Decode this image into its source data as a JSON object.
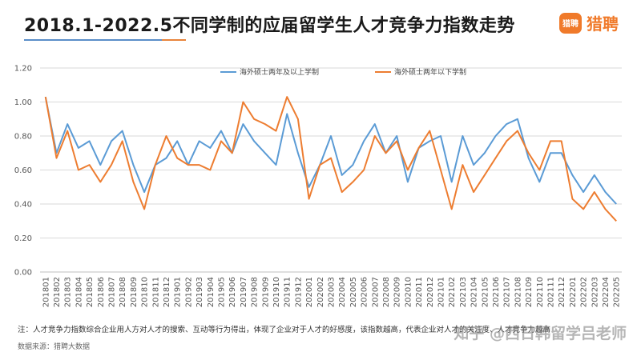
{
  "header": {
    "title": "2018.1-2022.5不同学制的应届留学生人才竞争力指数走势",
    "brand_badge": "猎聘",
    "brand_name": "猎聘"
  },
  "footnote": "注：人才竞争力指数综合企业用人方对人才的搜索、互动等行为得出，体现了企业对于人才的好感度，该指数越高，代表企业对人才的关注度、人才竞争力越高",
  "source": "数据来源：猎聘大数据",
  "watermark": "知乎 @西日韩留学吕老师",
  "colors": {
    "series1": "#5b9bd5",
    "series2": "#ed7d31",
    "title_accent_blue": "#5a8ec8",
    "brand": "#f07a2a"
  },
  "chart_data": {
    "type": "line",
    "title": "2018.1-2022.5不同学制的应届留学生人才竞争力指数走势",
    "xlabel": "",
    "ylabel": "",
    "ylim": [
      0,
      1.2
    ],
    "yticks": [
      "0.00",
      "0.20",
      "0.40",
      "0.60",
      "0.80",
      "1.00",
      "1.20"
    ],
    "grid": true,
    "legend_position": "top-center",
    "categories": [
      "201801",
      "201802",
      "201803",
      "201804",
      "201805",
      "201806",
      "201807",
      "201808",
      "201809",
      "201810",
      "201811",
      "201812",
      "201901",
      "201902",
      "201903",
      "201904",
      "201905",
      "201906",
      "201907",
      "201908",
      "201909",
      "201910",
      "201911",
      "201912",
      "202001",
      "202002",
      "202003",
      "202004",
      "202005",
      "202006",
      "202007",
      "202008",
      "202009",
      "202010",
      "202011",
      "202012",
      "202101",
      "202102",
      "202103",
      "202104",
      "202105",
      "202106",
      "202107",
      "202108",
      "202109",
      "202110",
      "202111",
      "202112",
      "202201",
      "202202",
      "202203",
      "202204",
      "202205"
    ],
    "series": [
      {
        "name": "海外硕士两年及以上学制",
        "color": "#5b9bd5",
        "values": [
          1.03,
          0.7,
          0.87,
          0.73,
          0.77,
          0.63,
          0.77,
          0.83,
          0.63,
          0.47,
          0.63,
          0.67,
          0.77,
          0.63,
          0.77,
          0.73,
          0.83,
          0.7,
          0.87,
          0.77,
          0.7,
          0.63,
          0.93,
          0.7,
          0.5,
          0.63,
          0.8,
          0.57,
          0.63,
          0.77,
          0.87,
          0.7,
          0.8,
          0.53,
          0.73,
          0.77,
          0.8,
          0.53,
          0.8,
          0.63,
          0.7,
          0.8,
          0.87,
          0.9,
          0.67,
          0.53,
          0.7,
          0.7,
          0.57,
          0.47,
          0.57,
          0.47,
          0.4
        ]
      },
      {
        "name": "海外硕士两年以下学制",
        "color": "#ed7d31",
        "values": [
          1.03,
          0.67,
          0.83,
          0.6,
          0.63,
          0.53,
          0.63,
          0.77,
          0.53,
          0.37,
          0.63,
          0.8,
          0.67,
          0.63,
          0.63,
          0.6,
          0.77,
          0.7,
          1.0,
          0.9,
          0.87,
          0.83,
          1.03,
          0.9,
          0.43,
          0.63,
          0.67,
          0.47,
          0.53,
          0.6,
          0.8,
          0.7,
          0.77,
          0.6,
          0.73,
          0.83,
          0.6,
          0.37,
          0.63,
          0.47,
          0.57,
          0.67,
          0.77,
          0.83,
          0.7,
          0.6,
          0.77,
          0.77,
          0.43,
          0.37,
          0.47,
          0.37,
          0.3
        ]
      }
    ]
  }
}
